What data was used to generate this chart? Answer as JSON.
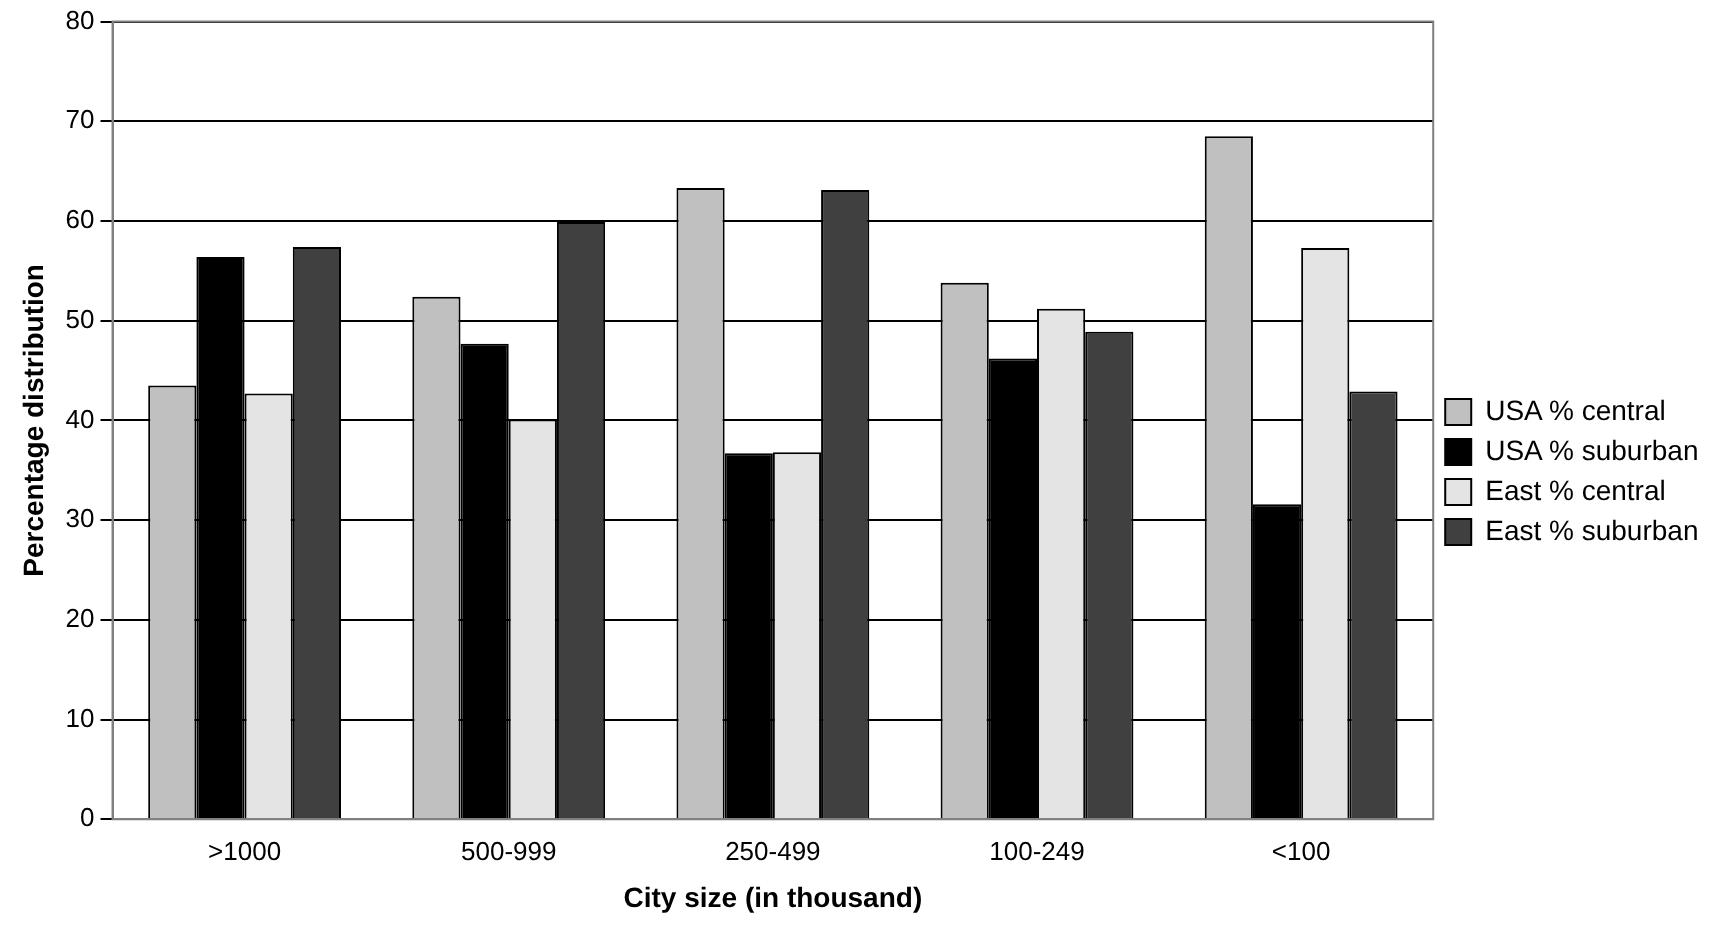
{
  "chart_data": {
    "type": "bar",
    "xlabel": "City size (in thousand)",
    "ylabel": "Percentage distribution",
    "categories": [
      ">1000",
      "500-999",
      "250-499",
      "100-249",
      "<100"
    ],
    "series": [
      {
        "name": "USA % central",
        "color": "#c0c0c0",
        "values": [
          43.5,
          52.4,
          63.3,
          53.8,
          68.5
        ]
      },
      {
        "name": "USA % suburban",
        "color": "#000000",
        "values": [
          56.4,
          47.7,
          36.7,
          46.2,
          31.6
        ]
      },
      {
        "name": "East % central",
        "color": "#e4e4e4",
        "values": [
          42.7,
          40.1,
          36.8,
          51.2,
          57.3
        ]
      },
      {
        "name": "East % suburban",
        "color": "#404040",
        "values": [
          57.4,
          59.9,
          63.1,
          48.9,
          42.9
        ]
      }
    ],
    "ylim": [
      0,
      80
    ],
    "yticks": [
      0,
      10,
      20,
      30,
      40,
      50,
      60,
      70,
      80
    ],
    "grid": "y",
    "legend": "right"
  }
}
